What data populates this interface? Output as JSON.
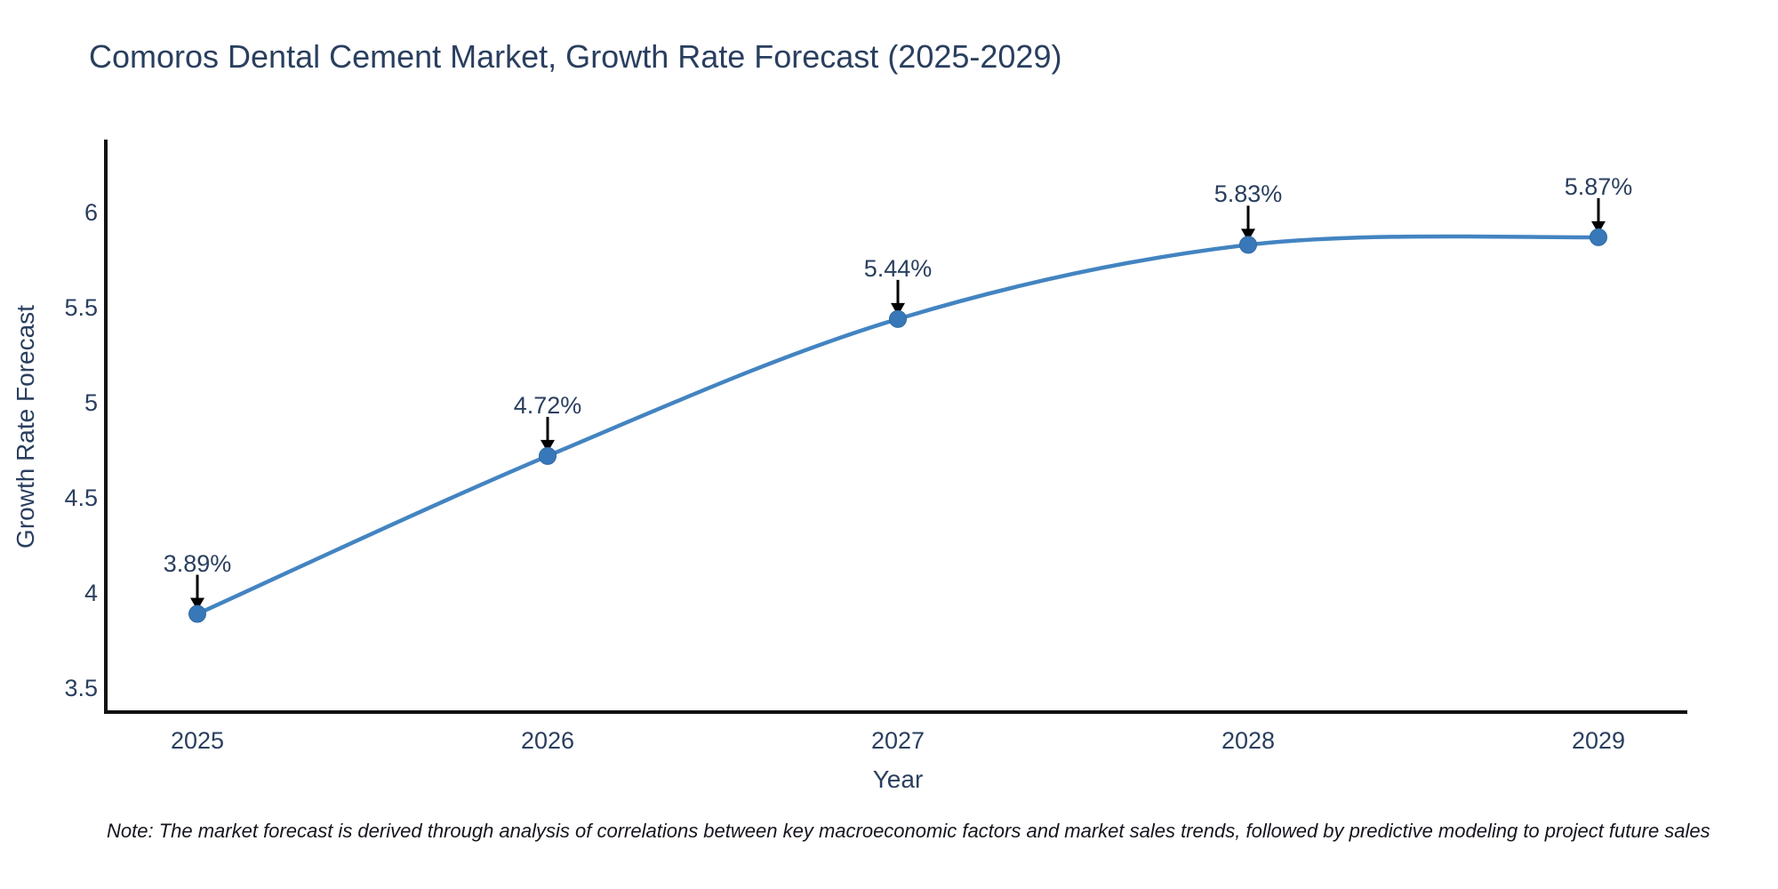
{
  "page": {
    "background": "#ffffff"
  },
  "title": {
    "text": "Comoros Dental Cement Market, Growth Rate Forecast (2025-2029)",
    "color": "#2a3f5f"
  },
  "note": {
    "text": "Note: The market forecast is derived through analysis of correlations between key macroeconomic factors and market sales trends, followed by predictive modeling to project future sales"
  },
  "chart_data": {
    "type": "line",
    "title": "Comoros Dental Cement Market, Growth Rate Forecast (2025-2029)",
    "x": [
      2025,
      2026,
      2027,
      2028,
      2029
    ],
    "series": [
      {
        "name": "Growth Rate Forecast",
        "values": [
          3.89,
          4.72,
          5.44,
          5.83,
          5.87
        ]
      }
    ],
    "point_labels": [
      "3.89%",
      "4.72%",
      "5.44%",
      "5.83%",
      "5.87%"
    ],
    "xlabel": "Year",
    "ylabel": "Growth Rate Forecast",
    "xtick_labels": [
      "2025",
      "2026",
      "2027",
      "2028",
      "2029"
    ],
    "yticks": [
      3.5,
      4,
      4.5,
      5,
      5.5,
      6
    ],
    "ytick_labels": [
      "3.5",
      "4",
      "4.5",
      "5",
      "5.5",
      "6"
    ],
    "ylim": [
      3.37,
      6.37
    ],
    "xlim": [
      2024.74,
      2029.26
    ],
    "grid": false,
    "legend_position": "none",
    "line_shape": "spline",
    "colors": {
      "line": "#4384c1",
      "marker": "#3878b8",
      "marker_edge": "#2f6aa3",
      "axis": "#111111",
      "text": "#2a3f5f",
      "arrow": "#000000",
      "note_text": "#15151f"
    }
  }
}
